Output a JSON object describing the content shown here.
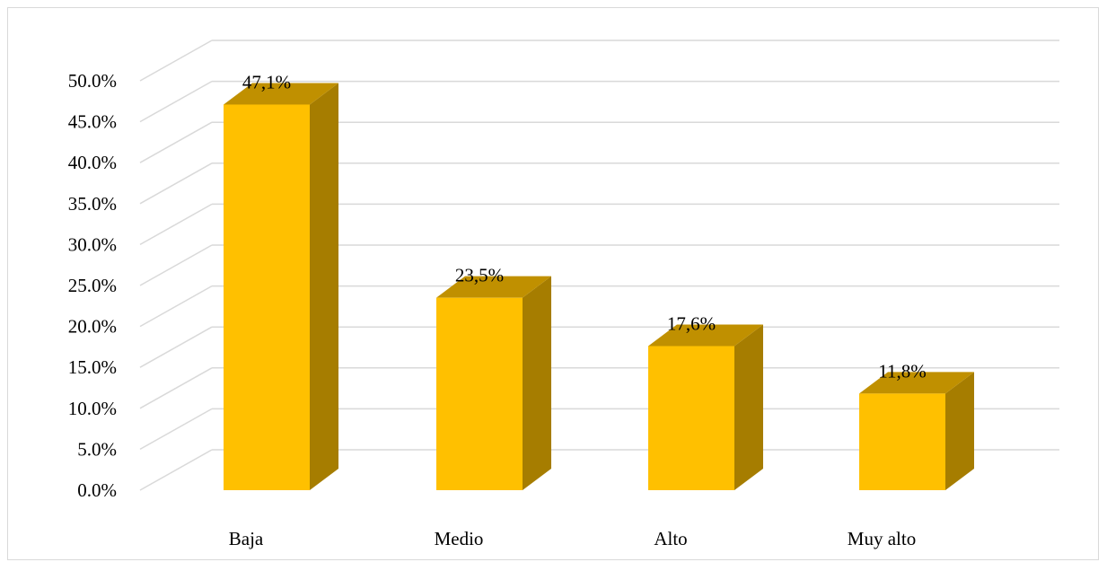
{
  "chart_data": {
    "type": "bar",
    "categories": [
      "Baja",
      "Medio",
      "Alto",
      "Muy alto"
    ],
    "values": [
      47.1,
      23.5,
      17.6,
      11.8
    ],
    "data_labels": [
      "47,1%",
      "23,5%",
      "17,6%",
      "11,8%"
    ],
    "y_tick_labels": [
      "0.0%",
      "5.0%",
      "10.0%",
      "15.0%",
      "20.0%",
      "25.0%",
      "30.0%",
      "35.0%",
      "40.0%",
      "45.0%",
      "50.0%"
    ],
    "ylim": [
      0,
      50
    ],
    "title": "",
    "xlabel": "",
    "ylabel": "",
    "grid": true,
    "legend": "none",
    "style": "3d-column",
    "colors": {
      "bar_front": "#FFC000",
      "bar_side": "#A67D00",
      "bar_top": "#C09000",
      "grid": "#D9D9D9"
    }
  }
}
